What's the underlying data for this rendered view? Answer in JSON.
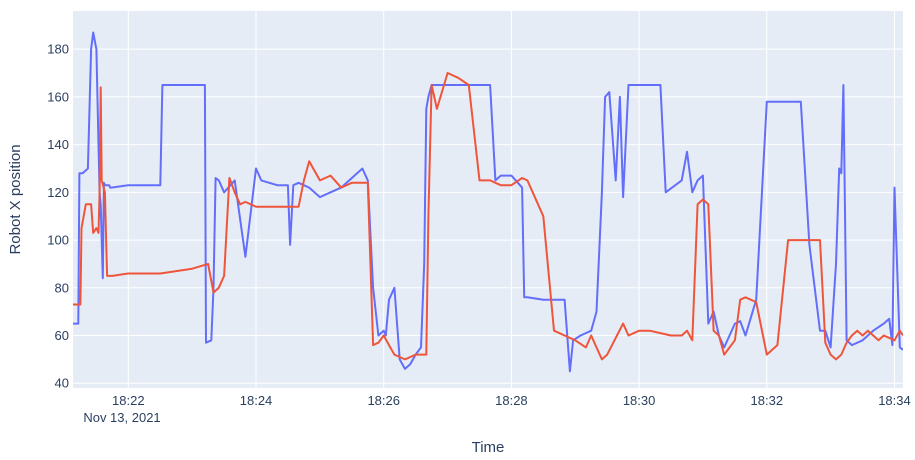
{
  "chart_data": {
    "type": "line",
    "title": "",
    "xlabel": "Time",
    "ylabel": "Robot X position",
    "x_date_label": "Nov 13, 2021",
    "xlim": [
      "18:21:08",
      "18:34:08"
    ],
    "ylim": [
      38,
      196
    ],
    "x_ticks": [
      "18:22",
      "18:24",
      "18:26",
      "18:28",
      "18:30",
      "18:32",
      "18:34"
    ],
    "y_ticks": [
      40,
      60,
      80,
      100,
      120,
      140,
      160,
      180
    ],
    "grid": true,
    "legend": "none",
    "colors": {
      "plot_bg": "#e5ecf6",
      "grid": "#ffffff",
      "text": "#2a3f5f"
    },
    "series": [
      {
        "color": "#636efa",
        "x": [
          "18:21:08",
          "18:21:13",
          "18:21:14",
          "18:21:17",
          "18:21:22",
          "18:21:25",
          "18:21:27",
          "18:21:30",
          "18:21:32",
          "18:21:33",
          "18:21:34",
          "18:21:36",
          "18:21:37",
          "18:21:38",
          "18:21:41",
          "18:21:42",
          "18:21:43",
          "18:21:44",
          "18:22:00",
          "18:22:30",
          "18:22:32",
          "18:22:40",
          "18:23:00",
          "18:23:12",
          "18:23:13",
          "18:23:18",
          "18:23:20",
          "18:23:22",
          "18:23:25",
          "18:23:30",
          "18:23:40",
          "18:23:50",
          "18:24:00",
          "18:24:05",
          "18:24:20",
          "18:24:30",
          "18:24:32",
          "18:24:35",
          "18:24:40",
          "18:24:50",
          "18:25:00",
          "18:25:10",
          "18:25:20",
          "18:25:35",
          "18:25:40",
          "18:25:45",
          "18:25:50",
          "18:25:55",
          "18:26:00",
          "18:26:02",
          "18:26:05",
          "18:26:10",
          "18:26:15",
          "18:26:20",
          "18:26:25",
          "18:26:30",
          "18:26:35",
          "18:26:38",
          "18:26:40",
          "18:26:42",
          "18:26:45",
          "18:26:50",
          "18:27:00",
          "18:27:10",
          "18:27:20",
          "18:27:30",
          "18:27:40",
          "18:27:45",
          "18:27:50",
          "18:28:00",
          "18:28:10",
          "18:28:12",
          "18:28:15",
          "18:28:30",
          "18:28:50",
          "18:28:55",
          "18:28:58",
          "18:29:05",
          "18:29:15",
          "18:29:20",
          "18:29:25",
          "18:29:28",
          "18:29:32",
          "18:29:38",
          "18:29:42",
          "18:29:45",
          "18:29:50",
          "18:30:00",
          "18:30:10",
          "18:30:20",
          "18:30:25",
          "18:30:40",
          "18:30:45",
          "18:30:50",
          "18:30:55",
          "18:31:00",
          "18:31:05",
          "18:31:10",
          "18:31:15",
          "18:31:20",
          "18:31:30",
          "18:31:35",
          "18:31:40",
          "18:31:50",
          "18:32:00",
          "18:32:20",
          "18:32:22",
          "18:32:25",
          "18:32:30",
          "18:32:32",
          "18:32:40",
          "18:32:50",
          "18:32:55",
          "18:33:00",
          "18:33:05",
          "18:33:08",
          "18:33:10",
          "18:33:12",
          "18:33:15",
          "18:33:20",
          "18:33:30",
          "18:33:40",
          "18:33:50",
          "18:33:55",
          "18:33:58",
          "18:34:00",
          "18:34:05",
          "18:34:08"
        ],
        "y": [
          65,
          65,
          128,
          128,
          130,
          180,
          187,
          180,
          140,
          120,
          115,
          84,
          124,
          123,
          123,
          123,
          122,
          122,
          123,
          123,
          165,
          165,
          165,
          165,
          57,
          58,
          80,
          126,
          125,
          120,
          125,
          93,
          130,
          125,
          123,
          123,
          98,
          123,
          124,
          122,
          118,
          120,
          122,
          128,
          130,
          125,
          80,
          60,
          62,
          60,
          75,
          80,
          50,
          46,
          48,
          52,
          55,
          90,
          155,
          160,
          165,
          165,
          165,
          165,
          165,
          165,
          165,
          125,
          127,
          127,
          122,
          76,
          76,
          75,
          75,
          45,
          58,
          60,
          62,
          70,
          120,
          160,
          162,
          125,
          160,
          118,
          165,
          165,
          165,
          165,
          120,
          125,
          137,
          120,
          125,
          127,
          65,
          70,
          60,
          55,
          65,
          66,
          60,
          75,
          158,
          158,
          158,
          158,
          158,
          158,
          98,
          62,
          62,
          55,
          90,
          130,
          128,
          165,
          58,
          56,
          58,
          62,
          65,
          67,
          56,
          122,
          55,
          54
        ]
      },
      {
        "color": "#ef553b",
        "x": [
          "18:21:08",
          "18:21:15",
          "18:21:16",
          "18:21:20",
          "18:21:25",
          "18:21:27",
          "18:21:30",
          "18:21:32",
          "18:21:33",
          "18:21:34",
          "18:21:35",
          "18:21:38",
          "18:21:40",
          "18:21:45",
          "18:22:00",
          "18:22:30",
          "18:23:00",
          "18:23:15",
          "18:23:20",
          "18:23:25",
          "18:23:30",
          "18:23:35",
          "18:23:40",
          "18:23:45",
          "18:23:50",
          "18:24:00",
          "18:24:20",
          "18:24:40",
          "18:24:45",
          "18:24:50",
          "18:25:00",
          "18:25:10",
          "18:25:20",
          "18:25:30",
          "18:25:45",
          "18:25:50",
          "18:25:55",
          "18:26:00",
          "18:26:05",
          "18:26:10",
          "18:26:20",
          "18:26:30",
          "18:26:40",
          "18:26:42",
          "18:26:45",
          "18:26:50",
          "18:27:00",
          "18:27:10",
          "18:27:20",
          "18:27:30",
          "18:27:40",
          "18:27:45",
          "18:27:50",
          "18:28:00",
          "18:28:10",
          "18:28:15",
          "18:28:30",
          "18:28:40",
          "18:28:50",
          "18:29:00",
          "18:29:10",
          "18:29:15",
          "18:29:20",
          "18:29:25",
          "18:29:30",
          "18:29:45",
          "18:29:50",
          "18:30:00",
          "18:30:10",
          "18:30:20",
          "18:30:30",
          "18:30:40",
          "18:30:45",
          "18:30:50",
          "18:30:55",
          "18:31:00",
          "18:31:05",
          "18:31:10",
          "18:31:15",
          "18:31:20",
          "18:31:30",
          "18:31:35",
          "18:31:40",
          "18:31:50",
          "18:32:00",
          "18:32:10",
          "18:32:20",
          "18:32:25",
          "18:32:30",
          "18:32:35",
          "18:32:40",
          "18:32:45",
          "18:32:50",
          "18:32:55",
          "18:33:00",
          "18:33:05",
          "18:33:10",
          "18:33:15",
          "18:33:20",
          "18:33:25",
          "18:33:30",
          "18:33:35",
          "18:33:40",
          "18:33:45",
          "18:33:50",
          "18:34:00",
          "18:34:05",
          "18:34:08"
        ],
        "y": [
          73,
          73,
          105,
          115,
          115,
          103,
          105,
          103,
          120,
          164,
          125,
          120,
          85,
          85,
          86,
          86,
          88,
          90,
          78,
          80,
          85,
          126,
          120,
          115,
          116,
          114,
          114,
          114,
          125,
          133,
          125,
          127,
          122,
          124,
          124,
          56,
          57,
          60,
          56,
          52,
          50,
          52,
          52,
          110,
          165,
          155,
          170,
          168,
          165,
          125,
          125,
          124,
          123,
          123,
          126,
          125,
          110,
          62,
          60,
          58,
          55,
          60,
          55,
          50,
          52,
          65,
          60,
          62,
          62,
          61,
          60,
          60,
          62,
          58,
          115,
          117,
          115,
          62,
          60,
          52,
          58,
          75,
          76,
          74,
          52,
          56,
          100,
          100,
          100,
          100,
          100,
          100,
          100,
          57,
          52,
          50,
          52,
          57,
          60,
          62,
          60,
          62,
          60,
          58,
          60,
          58,
          62,
          60
        ]
      }
    ]
  }
}
